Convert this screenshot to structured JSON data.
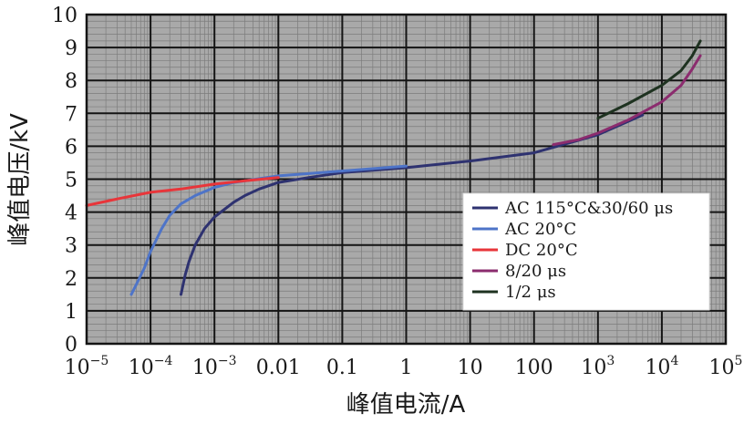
{
  "chart_data": {
    "type": "line",
    "xlabel": "峰值电流/A",
    "ylabel": "峰值电压/kV",
    "x_scale": "log",
    "xlim": [
      1e-05,
      100000
    ],
    "ylim": [
      0,
      10
    ],
    "grid": true,
    "legend_position": "center-right",
    "x_ticks": [
      {
        "value": 1e-05,
        "base": "10",
        "exp": "−5"
      },
      {
        "value": 0.0001,
        "base": "10",
        "exp": "−4"
      },
      {
        "value": 0.001,
        "base": "10",
        "exp": "−3"
      },
      {
        "value": 0.01,
        "label": "0.01"
      },
      {
        "value": 0.1,
        "label": "0.1"
      },
      {
        "value": 1,
        "label": "1"
      },
      {
        "value": 10,
        "label": "10"
      },
      {
        "value": 100,
        "label": "100"
      },
      {
        "value": 1000,
        "base": "10",
        "exp": "3"
      },
      {
        "value": 10000,
        "base": "10",
        "exp": "4"
      },
      {
        "value": 100000,
        "base": "10",
        "exp": "5"
      }
    ],
    "y_ticks": [
      0,
      1,
      2,
      3,
      4,
      5,
      6,
      7,
      8,
      9,
      10
    ],
    "series": [
      {
        "name": "AC 115°C&30/60 μs",
        "color": "#2e3270",
        "points": [
          [
            0.0003,
            1.5
          ],
          [
            0.00035,
            2.1
          ],
          [
            0.0004,
            2.5
          ],
          [
            0.0005,
            3.0
          ],
          [
            0.0007,
            3.5
          ],
          [
            0.001,
            3.85
          ],
          [
            0.002,
            4.3
          ],
          [
            0.003,
            4.5
          ],
          [
            0.005,
            4.7
          ],
          [
            0.01,
            4.9
          ],
          [
            0.03,
            5.05
          ],
          [
            0.1,
            5.2
          ],
          [
            1,
            5.35
          ],
          [
            10,
            5.55
          ],
          [
            100,
            5.8
          ],
          [
            1000,
            6.35
          ],
          [
            5000,
            6.95
          ]
        ]
      },
      {
        "name": "AC 20°C",
        "color": "#4e74c8",
        "points": [
          [
            5e-05,
            1.5
          ],
          [
            6e-05,
            1.8
          ],
          [
            8e-05,
            2.3
          ],
          [
            0.0001,
            2.8
          ],
          [
            0.00015,
            3.5
          ],
          [
            0.0002,
            3.9
          ],
          [
            0.0003,
            4.25
          ],
          [
            0.0005,
            4.5
          ],
          [
            0.001,
            4.75
          ],
          [
            0.002,
            4.9
          ],
          [
            0.01,
            5.1
          ],
          [
            0.1,
            5.25
          ],
          [
            1,
            5.4
          ]
        ]
      },
      {
        "name": "DC 20°C",
        "color": "#e8353a",
        "points": [
          [
            1e-05,
            4.2
          ],
          [
            3e-05,
            4.4
          ],
          [
            0.0001,
            4.6
          ],
          [
            0.0003,
            4.7
          ],
          [
            0.001,
            4.85
          ],
          [
            0.003,
            4.95
          ],
          [
            0.01,
            5.05
          ]
        ]
      },
      {
        "name": "8/20 μs",
        "color": "#8b2c6e",
        "points": [
          [
            200,
            6.05
          ],
          [
            500,
            6.2
          ],
          [
            1000,
            6.4
          ],
          [
            3000,
            6.8
          ],
          [
            10000,
            7.35
          ],
          [
            20000,
            7.85
          ],
          [
            30000,
            8.35
          ],
          [
            40000,
            8.75
          ]
        ]
      },
      {
        "name": "1/2 μs",
        "color": "#1e3220",
        "points": [
          [
            1000,
            6.85
          ],
          [
            3000,
            7.3
          ],
          [
            10000,
            7.85
          ],
          [
            20000,
            8.3
          ],
          [
            30000,
            8.75
          ],
          [
            40000,
            9.2
          ]
        ]
      }
    ]
  }
}
